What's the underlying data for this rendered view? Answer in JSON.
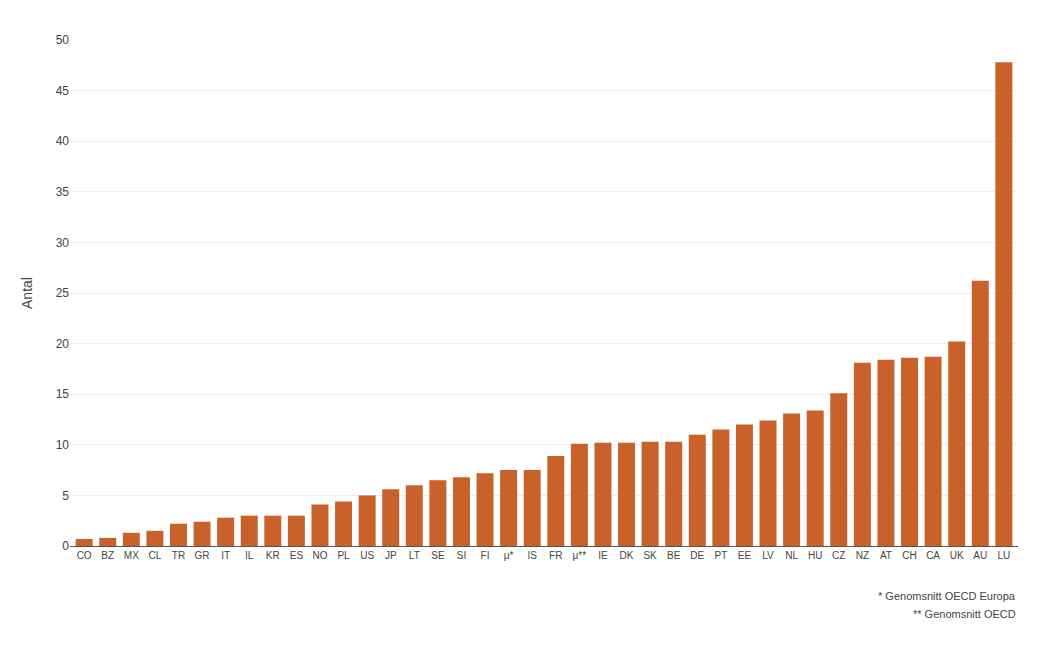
{
  "chart_data": {
    "type": "bar",
    "y_label": "Antal",
    "categories": [
      "CO",
      "BZ",
      "MX",
      "CL",
      "TR",
      "GR",
      "IT",
      "IL",
      "KR",
      "ES",
      "NO",
      "PL",
      "US",
      "JP",
      "LT",
      "SE",
      "SI",
      "FI",
      "μ*",
      "IS",
      "FR",
      "μ**",
      "IE",
      "DK",
      "SK",
      "BE",
      "DE",
      "PT",
      "EE",
      "LV",
      "NL",
      "HU",
      "CZ",
      "NZ",
      "AT",
      "CH",
      "CA",
      "UK",
      "AU",
      "LU"
    ],
    "values": [
      0.7,
      0.8,
      1.3,
      1.5,
      2.2,
      2.4,
      2.8,
      3.0,
      3.0,
      3.0,
      4.1,
      4.4,
      5.0,
      5.6,
      6.0,
      6.5,
      6.8,
      7.2,
      7.5,
      7.5,
      8.9,
      10.1,
      10.2,
      10.2,
      10.3,
      10.3,
      11.0,
      11.5,
      12.0,
      12.4,
      13.1,
      13.4,
      15.1,
      18.1,
      18.4,
      18.6,
      18.7,
      20.2,
      26.2,
      47.8
    ],
    "color": "#C8622A",
    "ylim": [
      0,
      50
    ],
    "yticks": [
      0,
      5,
      10,
      15,
      20,
      25,
      30,
      35,
      40,
      45,
      50
    ],
    "grid": true,
    "annotations": [
      "* Genomsnitt OECD Europa",
      "** Genomsnitt OECD"
    ]
  }
}
